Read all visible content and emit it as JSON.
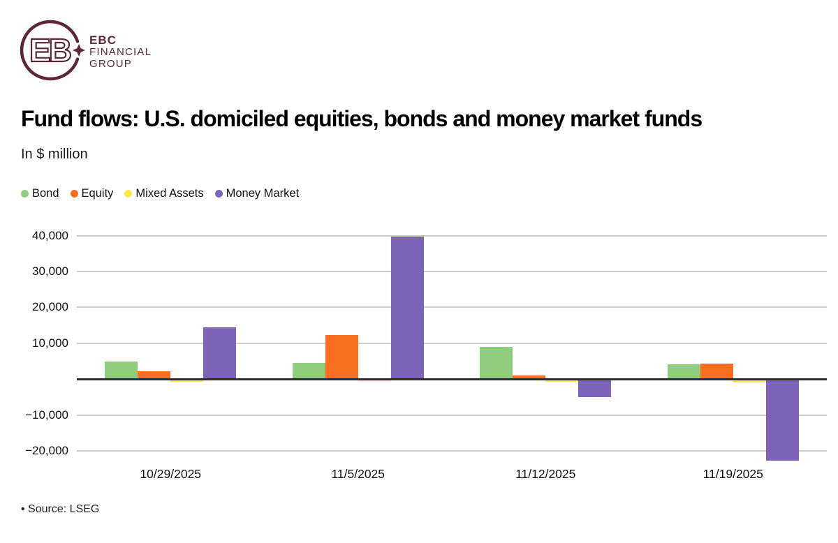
{
  "logo": {
    "line1": "EBC",
    "line2": "FINANCIAL",
    "line3": "GROUP"
  },
  "header": {
    "title": "Fund flows: U.S. domiciled equities, bonds and money market funds",
    "subtitle": "In $ million"
  },
  "footer": {
    "source": "• Source: LSEG"
  },
  "colors": {
    "brand": "#5E2639",
    "grid": "#cccccc",
    "axis": "#2d2d2d"
  },
  "chart_data": {
    "type": "bar",
    "title": "Fund flows: U.S. domiciled equities, bonds and money market funds",
    "ylabel": "In $ million",
    "categories": [
      "10/29/2025",
      "11/5/2025",
      "11/12/2025",
      "11/19/2025"
    ],
    "series": [
      {
        "name": "Bond",
        "color": "#90CE7F",
        "values": [
          5000,
          4600,
          9000,
          4100
        ]
      },
      {
        "name": "Equity",
        "color": "#F96D1F",
        "values": [
          2100,
          12300,
          1100,
          4400
        ]
      },
      {
        "name": "Mixed Assets",
        "color": "#F9E94B",
        "values": [
          -800,
          -600,
          -700,
          -900
        ]
      },
      {
        "name": "Money Market",
        "color": "#7D64B8",
        "values": [
          14500,
          39700,
          -5000,
          -22800
        ]
      }
    ],
    "yticks": [
      {
        "value": 40000,
        "label": "40,000"
      },
      {
        "value": 30000,
        "label": "30,000"
      },
      {
        "value": 20000,
        "label": "20,000"
      },
      {
        "value": 10000,
        "label": "10,000"
      },
      {
        "value": 0,
        "label": ""
      },
      {
        "value": -10000,
        "label": "−10,000"
      },
      {
        "value": -20000,
        "label": "−20,000"
      }
    ],
    "ylim": [
      -23500,
      41500
    ],
    "grid": true,
    "legend_position": "top-left"
  }
}
